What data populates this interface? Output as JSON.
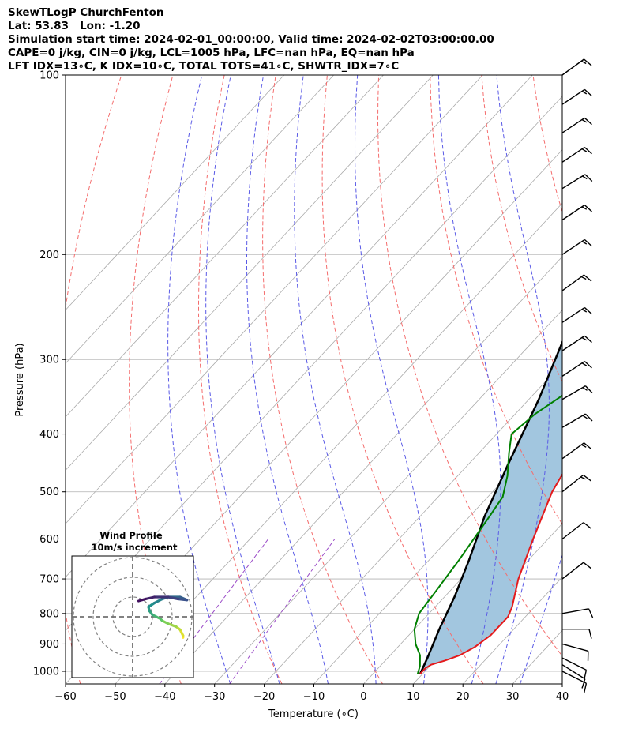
{
  "header": {
    "line1": "SkewTLogP ChurchFenton",
    "line2": "Lat: 53.83   Lon: -1.20",
    "line3": "Simulation start time: 2024-02-01_00:00:00, Valid time: 2024-02-02T03:00:00.00",
    "line4": "CAPE=0 j/kg, CIN=0 j/kg, LCL=1005 hPa, LFC=nan hPa, EQ=nan hPa",
    "line5": "LFT IDX=13∘C, K IDX=10∘C, TOTAL TOTS=41∘C, SHWTR_IDX=7∘C"
  },
  "chart_data": [
    {
      "type": "line",
      "chart_kind": "skew-T log-P diagram",
      "xlabel": "Temperature (∘C)",
      "ylabel": "Pressure (hPa)",
      "xlim": [
        -60,
        40
      ],
      "ylim": [
        1050,
        100
      ],
      "y_scale": "log",
      "x_ticks": [
        -60,
        -50,
        -40,
        -30,
        -20,
        -10,
        0,
        10,
        20,
        30,
        40
      ],
      "y_ticks": [
        1000,
        900,
        800,
        700,
        600,
        500,
        400,
        300,
        200,
        100
      ],
      "grid": true,
      "series": [
        {
          "role": "temperature",
          "color": "#e41a1c",
          "points": [
            [
              9.5,
              1010
            ],
            [
              9.5,
              990
            ],
            [
              10,
              975
            ],
            [
              12,
              960
            ],
            [
              14,
              940
            ],
            [
              15.5,
              910
            ],
            [
              16.5,
              870
            ],
            [
              16.5,
              810
            ],
            [
              15.5,
              780
            ],
            [
              11.5,
              700
            ],
            [
              7,
              600
            ],
            [
              2,
              500
            ],
            [
              -2,
              400
            ],
            [
              -4,
              350
            ],
            [
              -6,
              300
            ],
            [
              -8,
              260
            ],
            [
              -10,
              230
            ],
            [
              -14,
              200
            ],
            [
              -14.5,
              185
            ],
            [
              -14,
              170
            ],
            [
              -11,
              150
            ],
            [
              -5,
              135
            ],
            [
              -1,
              125
            ],
            [
              3,
              115
            ],
            [
              4,
              109
            ],
            [
              5,
              100
            ]
          ]
        },
        {
          "role": "dewpoint",
          "color": "#008000",
          "points": [
            [
              9,
              1010
            ],
            [
              8,
              980
            ],
            [
              6,
              940
            ],
            [
              3,
              900
            ],
            [
              0,
              850
            ],
            [
              -2,
              800
            ],
            [
              -3,
              720
            ],
            [
              -4,
              650
            ],
            [
              -6,
              550
            ],
            [
              -7,
              510
            ],
            [
              -10,
              470
            ],
            [
              -14,
              430
            ],
            [
              -17,
              400
            ],
            [
              -16,
              370
            ],
            [
              -14,
              345
            ],
            [
              -13,
              320
            ],
            [
              -13,
              300
            ],
            [
              -15,
              270
            ],
            [
              -18,
              240
            ],
            [
              -22,
              205
            ],
            [
              -24,
              185
            ],
            [
              -23.5,
              175
            ],
            [
              -22,
              163
            ],
            [
              -19,
              150
            ],
            [
              -16,
              140
            ],
            [
              -15,
              125
            ],
            [
              -16,
              115
            ],
            [
              -14,
              108
            ],
            [
              -11,
              100
            ]
          ]
        },
        {
          "role": "parcel",
          "color": "#000000",
          "points": [
            [
              9.5,
              1010
            ],
            [
              8,
              950
            ],
            [
              5,
              850
            ],
            [
              2,
              750
            ],
            [
              -2,
              650
            ],
            [
              -7,
              550
            ],
            [
              -12,
              450
            ],
            [
              -18,
              350
            ],
            [
              -25,
              270
            ],
            [
              -32,
              210
            ],
            [
              -40,
              165
            ],
            [
              -48,
              130
            ],
            [
              -55,
              100
            ]
          ]
        }
      ],
      "shading": {
        "name": "CAPE/CIN area",
        "color": "#a2c6df"
      },
      "reference_lines": {
        "isotherms": {
          "color": "#aaaaaa",
          "values": [
            -130,
            -120,
            -110,
            -100,
            -90,
            -80,
            -70,
            -60,
            -50,
            -40,
            -30,
            -20,
            -10,
            0,
            10,
            20,
            30,
            40
          ]
        },
        "dry_adiabats": {
          "color": "#f46d6d",
          "base_temps_c_at_1000": [
            -60,
            -40,
            -20,
            0,
            20,
            40,
            60,
            80,
            100
          ]
        },
        "moist_adiabats": {
          "color": "#5a5ae6",
          "base_temps_c_at_1000": [
            -30,
            -20,
            -10,
            0,
            10,
            20,
            25,
            30
          ]
        },
        "mixing_ratio": {
          "color": "#9b4cc8",
          "values_gkg": [
            0.1,
            0.4
          ]
        }
      },
      "wind_barbs": [
        {
          "p": 1000,
          "u": -8,
          "v": 4
        },
        {
          "p": 975,
          "u": -8,
          "v": 5
        },
        {
          "p": 950,
          "u": -10,
          "v": 5
        },
        {
          "p": 900,
          "u": -11,
          "v": 3
        },
        {
          "p": 850,
          "u": -11,
          "v": 0
        },
        {
          "p": 800,
          "u": -11,
          "v": -2
        },
        {
          "p": 700,
          "u": -9,
          "v": -7
        },
        {
          "p": 600,
          "u": -9,
          "v": -7
        },
        {
          "p": 500,
          "u": -10,
          "v": -8
        },
        {
          "p": 440,
          "u": -11,
          "v": -8
        },
        {
          "p": 390,
          "u": -12,
          "v": -7
        },
        {
          "p": 350,
          "u": -12,
          "v": -7
        },
        {
          "p": 320,
          "u": -12,
          "v": -8
        },
        {
          "p": 290,
          "u": -12,
          "v": -8
        },
        {
          "p": 260,
          "u": -12,
          "v": -8
        },
        {
          "p": 230,
          "u": -11,
          "v": -8
        },
        {
          "p": 200,
          "u": -12,
          "v": -8
        },
        {
          "p": 175,
          "u": -12,
          "v": -8
        },
        {
          "p": 155,
          "u": -13,
          "v": -8
        },
        {
          "p": 140,
          "u": -12,
          "v": -8
        },
        {
          "p": 125,
          "u": -12,
          "v": -8
        },
        {
          "p": 112,
          "u": -12,
          "v": -8
        },
        {
          "p": 100,
          "u": -11,
          "v": -8
        }
      ]
    },
    {
      "type": "line",
      "chart_kind": "hodograph",
      "title": "Wind Profile",
      "subtitle": "10m/s increment",
      "ring_increment_ms": 10,
      "colormap": [
        "#440154",
        "#3b528b",
        "#21918c",
        "#5ec962",
        "#fde725"
      ],
      "points": [
        [
          25.5,
          -10.5
        ],
        [
          25.5,
          -9.5
        ],
        [
          24,
          -6.5
        ],
        [
          22,
          -5
        ],
        [
          18,
          -3.5
        ],
        [
          15,
          -2
        ],
        [
          14,
          -1
        ],
        [
          12,
          0
        ],
        [
          10,
          1
        ],
        [
          8.5,
          3
        ],
        [
          8,
          5
        ],
        [
          11,
          7
        ],
        [
          15,
          9
        ],
        [
          18,
          10
        ],
        [
          24,
          10
        ],
        [
          27.5,
          8.5
        ],
        [
          23,
          9
        ],
        [
          18,
          10
        ],
        [
          11,
          10
        ],
        [
          6.5,
          9
        ],
        [
          3,
          8
        ]
      ]
    }
  ]
}
